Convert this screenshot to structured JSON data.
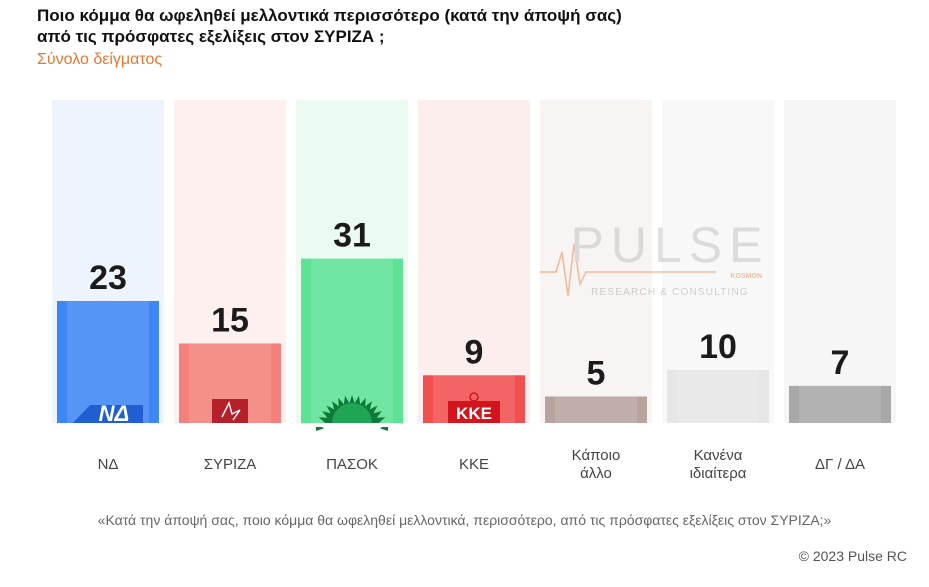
{
  "chart_data": {
    "type": "bar",
    "title_line1": "Ποιο κόμμα θα ωφεληθεί μελλοντικά περισσότερο (κατά την άποψή σας)",
    "title_line2": "από τις πρόσφατες εξελίξεις στον ΣΥΡΙΖΑ ;",
    "subtitle": "Σύνολο δείγματος",
    "categories": [
      {
        "label": "ΝΔ",
        "lines": [
          "ΝΔ"
        ],
        "value": 23,
        "color": "#3d87f5",
        "column_color": "#eef4fd",
        "logo": "nd-logo",
        "logo_text": "ΝΔ"
      },
      {
        "label": "ΣΥΡΙΖΑ",
        "lines": [
          "ΣΥΡΙΖΑ"
        ],
        "value": 15,
        "color": "#f3807a",
        "column_color": "#fdf0ef",
        "logo": "syriza-logo",
        "logo_text": ""
      },
      {
        "label": "ΠΑΣΟΚ",
        "lines": [
          "ΠΑΣΟΚ"
        ],
        "value": 31,
        "color": "#5ee396",
        "column_color": "#ecfbf1",
        "logo": "pasok-logo",
        "logo_text": ""
      },
      {
        "label": "ΚΚΕ",
        "lines": [
          "ΚΚΕ"
        ],
        "value": 9,
        "color": "#f25050",
        "column_color": "#fdeeee",
        "logo": "kke-logo",
        "logo_text": "ΚΚΕ"
      },
      {
        "label": "Κάποιο άλλο",
        "lines": [
          "Κάποιο",
          "άλλο"
        ],
        "value": 5,
        "color": "#b8a49d",
        "column_color": "#f8f4f3",
        "logo": "",
        "logo_text": ""
      },
      {
        "label": "Κανένα ιδιαίτερα",
        "lines": [
          "Κανένα",
          "ιδιαίτερα"
        ],
        "value": 10,
        "color": "#e6e6e6",
        "column_color": "#f8f8f8",
        "logo": "",
        "logo_text": ""
      },
      {
        "label": "ΔΓ / ΔΑ",
        "lines": [
          "ΔΓ / ΔΑ"
        ],
        "value": 7,
        "color": "#a8a8a8",
        "column_color": "#f6f6f6",
        "logo": "",
        "logo_text": ""
      }
    ],
    "ylim": [
      0,
      35
    ],
    "grid": false,
    "legend": "none"
  },
  "watermark": {
    "brand": "PULSE",
    "partner": "KOSMON",
    "tagline": "RESEARCH & CONSULTING",
    "accent_color": "#e8772e"
  },
  "footnote": "«Κατά την άποψή σας, ποιο κόμμα θα ωφεληθεί μελλοντικά, περισσότερο, από τις πρόσφατες εξελίξεις στον ΣΥΡΙΖΑ;»",
  "copyright": "© 2023 Pulse RC"
}
